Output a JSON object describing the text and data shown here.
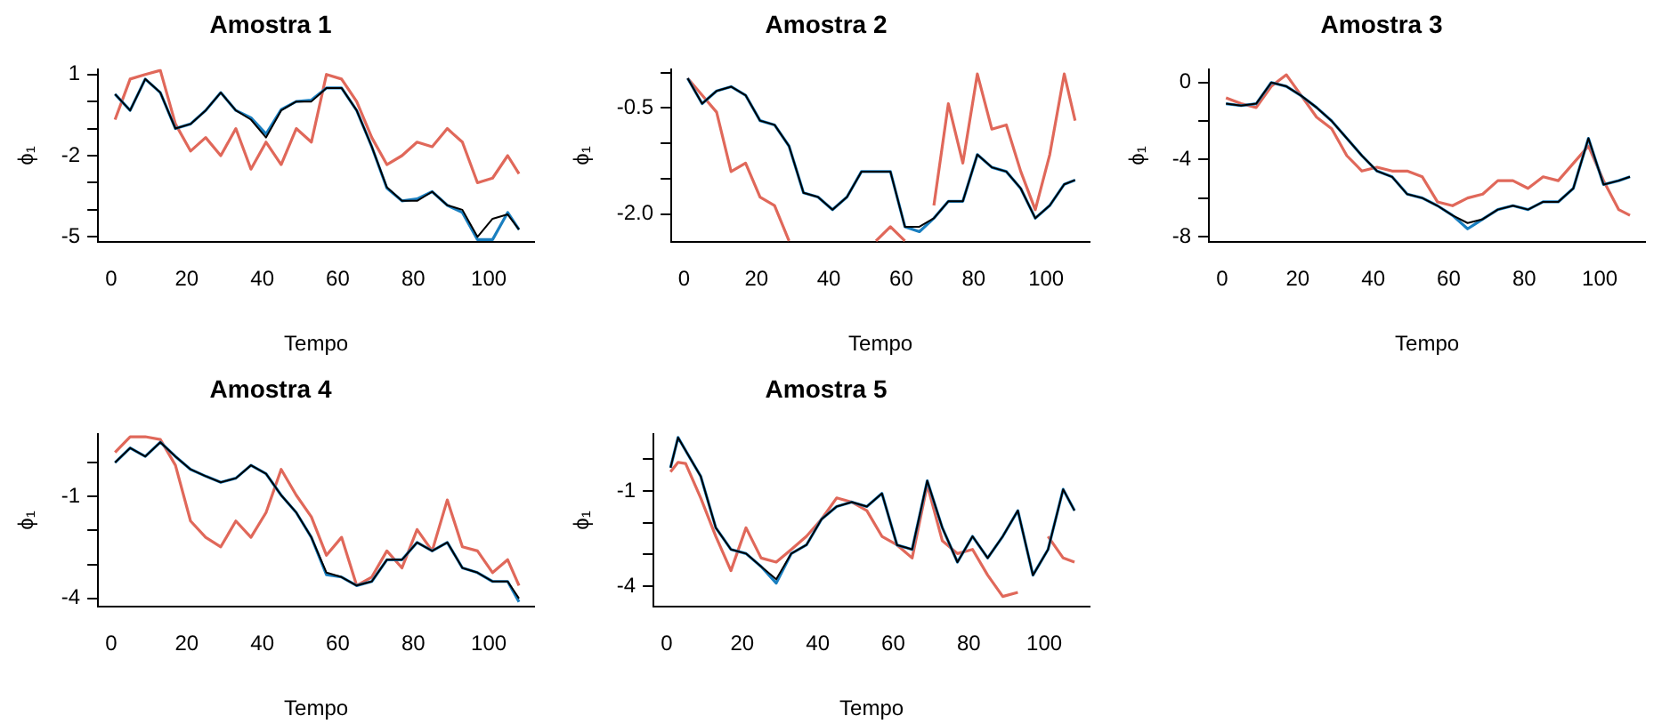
{
  "chart_data": [
    {
      "type": "line",
      "title": "Amostra 1",
      "xlabel": "Tempo",
      "ylabel": "ϕ₁",
      "x": [
        1,
        5,
        9,
        13,
        17,
        21,
        25,
        29,
        33,
        37,
        41,
        45,
        49,
        53,
        57,
        61,
        65,
        69,
        73,
        77,
        81,
        85,
        89,
        93,
        97,
        101,
        105,
        108
      ],
      "xlim": [
        -3.5,
        112
      ],
      "xticks": [
        0,
        20,
        40,
        60,
        80,
        100
      ],
      "ylim": [
        -5.2,
        1.2
      ],
      "yticks": [
        1,
        {
          "value": 0,
          "label": null
        },
        {
          "value": -1,
          "label": null
        },
        -2,
        {
          "value": -3,
          "label": null
        },
        {
          "value": -4,
          "label": null
        },
        -5
      ],
      "series": [
        {
          "color": "#e0685a",
          "values": [
            -0.67,
            0.83,
            1.0,
            1.15,
            -0.83,
            -1.83,
            -1.33,
            -2.0,
            -1.0,
            -2.5,
            -1.5,
            -2.33,
            -1.0,
            -1.5,
            1.0,
            0.83,
            0,
            -1.33,
            -2.33,
            -2.0,
            -1.5,
            -1.67,
            -1.0,
            -1.5,
            -3.0,
            -2.83,
            -2.0,
            -2.67
          ]
        },
        {
          "color": "#1a7fc0",
          "values": [
            0.27,
            -0.33,
            0.83,
            0.33,
            -1.0,
            -0.83,
            -0.33,
            0.33,
            -0.33,
            -0.6,
            -1.2,
            -0.3,
            0,
            0.05,
            0.5,
            0.5,
            -0.33,
            -1.67,
            -3.2,
            -3.67,
            -3.6,
            -3.33,
            -3.83,
            -4.1,
            -5.1,
            -5.1,
            -4.1,
            -4.73
          ]
        },
        {
          "color": "#000000",
          "values": [
            0.27,
            -0.33,
            0.83,
            0.33,
            -1.0,
            -0.83,
            -0.33,
            0.33,
            -0.33,
            -0.67,
            -1.33,
            -0.33,
            0,
            0,
            0.5,
            0.5,
            -0.33,
            -1.67,
            -3.17,
            -3.67,
            -3.67,
            -3.33,
            -3.83,
            -4.0,
            -5.0,
            -4.33,
            -4.17,
            -4.73
          ]
        }
      ]
    },
    {
      "type": "line",
      "title": "Amostra 2",
      "xlabel": "Tempo",
      "ylabel": "ϕ₁",
      "x": [
        1,
        5,
        9,
        13,
        17,
        21,
        25,
        29,
        33,
        37,
        41,
        45,
        49,
        53,
        57,
        61,
        65,
        69,
        73,
        77,
        81,
        85,
        89,
        93,
        97,
        101,
        105,
        108
      ],
      "xlim": [
        -3.5,
        112
      ],
      "xticks": [
        0,
        20,
        40,
        60,
        80,
        100
      ],
      "ylim": [
        -2.4,
        0.05
      ],
      "yticks": [
        {
          "value": 0,
          "label": null
        },
        -0.5,
        {
          "value": -1,
          "label": null
        },
        {
          "value": -1.5,
          "label": null
        },
        {
          "value": -2,
          "label": "-2.0"
        }
      ],
      "series": [
        {
          "color": "#e0685a",
          "values": [
            -0.08,
            -0.32,
            -0.56,
            -1.4,
            -1.28,
            -1.76,
            -1.88,
            -2.38,
            null,
            null,
            null,
            null,
            null,
            -2.38,
            -2.18,
            -2.38,
            null,
            -1.88,
            -0.44,
            -1.28,
            -0.02,
            -0.8,
            -0.74,
            -1.4,
            -1.94,
            -1.16,
            -0.02,
            -0.68
          ]
        },
        {
          "color": "#1a7fc0",
          "values": [
            -0.08,
            -0.44,
            -0.26,
            -0.2,
            -0.32,
            -0.68,
            -0.74,
            -1.04,
            -1.7,
            -1.76,
            -1.94,
            -1.76,
            -1.4,
            -1.4,
            -1.4,
            -2.18,
            -2.25,
            -2.06,
            -1.82,
            -1.82,
            -1.16,
            -1.34,
            -1.4,
            -1.64,
            -2.06,
            -1.88,
            -1.58,
            -1.52
          ]
        },
        {
          "color": "#000000",
          "values": [
            -0.08,
            -0.44,
            -0.26,
            -0.2,
            -0.32,
            -0.68,
            -0.74,
            -1.04,
            -1.7,
            -1.76,
            -1.94,
            -1.76,
            -1.4,
            -1.4,
            -1.4,
            -2.18,
            -2.18,
            -2.06,
            -1.82,
            -1.82,
            -1.16,
            -1.34,
            -1.4,
            -1.64,
            -2.06,
            -1.88,
            -1.58,
            -1.52
          ]
        }
      ]
    },
    {
      "type": "line",
      "title": "Amostra 3",
      "xlabel": "Tempo",
      "ylabel": "ϕ₁",
      "x": [
        1,
        5,
        9,
        13,
        17,
        21,
        25,
        29,
        33,
        37,
        41,
        45,
        49,
        53,
        57,
        61,
        65,
        69,
        73,
        77,
        81,
        85,
        89,
        93,
        97,
        101,
        105,
        108
      ],
      "xlim": [
        -3.5,
        112
      ],
      "xticks": [
        0,
        20,
        40,
        60,
        80,
        100
      ],
      "ylim": [
        -8.3,
        0.7
      ],
      "yticks": [
        0,
        {
          "value": -2,
          "label": null
        },
        -4,
        {
          "value": -6,
          "label": null
        },
        -8
      ],
      "series": [
        {
          "color": "#e0685a",
          "values": [
            -0.8,
            -1.1,
            -1.3,
            -0.2,
            0.4,
            -0.7,
            -1.8,
            -2.4,
            -3.8,
            -4.6,
            -4.4,
            -4.6,
            -4.6,
            -4.9,
            -6.2,
            -6.4,
            -6.0,
            -5.8,
            -5.1,
            -5.1,
            -5.5,
            -4.9,
            -5.1,
            -4.2,
            -3.3,
            -5.1,
            -6.6,
            -6.9
          ]
        },
        {
          "color": "#1a7fc0",
          "values": [
            -1.1,
            -1.2,
            -1.1,
            0,
            -0.2,
            -0.7,
            -1.3,
            -2.0,
            -2.9,
            -3.8,
            -4.6,
            -4.9,
            -5.8,
            -6.0,
            -6.4,
            -6.9,
            -7.6,
            -7.1,
            -6.6,
            -6.4,
            -6.6,
            -6.2,
            -6.2,
            -5.5,
            -2.9,
            -5.3,
            -5.1,
            -4.9
          ]
        },
        {
          "color": "#000000",
          "values": [
            -1.1,
            -1.2,
            -1.1,
            0,
            -0.2,
            -0.7,
            -1.3,
            -2.0,
            -2.9,
            -3.8,
            -4.6,
            -4.9,
            -5.8,
            -6.0,
            -6.4,
            -6.9,
            -7.3,
            -7.1,
            -6.6,
            -6.4,
            -6.6,
            -6.2,
            -6.2,
            -5.5,
            -2.9,
            -5.3,
            -5.1,
            -4.9
          ]
        }
      ]
    },
    {
      "type": "line",
      "title": "Amostra 4",
      "xlabel": "Tempo",
      "ylabel": "ϕ₁",
      "x": [
        1,
        5,
        9,
        13,
        17,
        21,
        25,
        29,
        33,
        37,
        41,
        45,
        49,
        53,
        57,
        61,
        65,
        69,
        73,
        77,
        81,
        85,
        89,
        93,
        97,
        101,
        105,
        108
      ],
      "xlim": [
        -3.5,
        112
      ],
      "xticks": [
        0,
        20,
        40,
        60,
        80,
        100
      ],
      "ylim": [
        -4.25,
        0.85
      ],
      "yticks": [
        {
          "value": 0,
          "label": null
        },
        -1,
        {
          "value": -2,
          "label": null
        },
        {
          "value": -3,
          "label": null
        },
        -4
      ],
      "series": [
        {
          "color": "#e0685a",
          "values": [
            0.3,
            0.76,
            0.76,
            0.68,
            -0.08,
            -1.72,
            -2.2,
            -2.48,
            -1.72,
            -2.2,
            -1.47,
            -0.2,
            -0.96,
            -1.6,
            -2.73,
            -2.2,
            -3.62,
            -3.37,
            -2.6,
            -3.1,
            -1.97,
            -2.6,
            -1.1,
            -2.48,
            -2.6,
            -3.24,
            -2.86,
            -3.62
          ]
        },
        {
          "color": "#1a7fc0",
          "values": [
            0,
            0.43,
            0.18,
            0.6,
            0.18,
            -0.2,
            -0.4,
            -0.58,
            -0.46,
            -0.08,
            -0.33,
            -0.96,
            -1.47,
            -2.2,
            -3.3,
            -3.37,
            -3.62,
            -3.5,
            -2.86,
            -2.86,
            -2.35,
            -2.6,
            -2.35,
            -3.1,
            -3.24,
            -3.5,
            -3.5,
            -4.1
          ]
        },
        {
          "color": "#000000",
          "values": [
            0,
            0.43,
            0.18,
            0.6,
            0.18,
            -0.2,
            -0.4,
            -0.58,
            -0.46,
            -0.08,
            -0.33,
            -0.96,
            -1.47,
            -2.2,
            -3.24,
            -3.37,
            -3.62,
            -3.5,
            -2.86,
            -2.86,
            -2.35,
            -2.6,
            -2.35,
            -3.1,
            -3.24,
            -3.5,
            -3.5,
            -4.0
          ]
        }
      ]
    },
    {
      "type": "line",
      "title": "Amostra 5",
      "xlabel": "Tempo",
      "ylabel": "ϕ₁",
      "x": [
        1,
        3,
        5,
        9,
        13,
        17,
        21,
        25,
        29,
        33,
        37,
        41,
        45,
        49,
        53,
        57,
        61,
        65,
        69,
        73,
        77,
        81,
        85,
        89,
        93,
        97,
        101,
        105,
        108
      ],
      "xlim": [
        -3.5,
        112
      ],
      "xticks": [
        0,
        20,
        40,
        60,
        80,
        100
      ],
      "ylim": [
        -4.65,
        0.8
      ],
      "yticks": [
        {
          "value": 0,
          "label": null
        },
        -1,
        {
          "value": -2,
          "label": null
        },
        {
          "value": -3,
          "label": null
        },
        -4
      ],
      "series": [
        {
          "color": "#e0685a",
          "values": [
            -0.4,
            -0.1,
            -0.14,
            -1.22,
            -2.43,
            -3.51,
            -2.16,
            -3.11,
            -3.24,
            -2.84,
            -2.43,
            -1.89,
            -1.22,
            -1.35,
            -1.62,
            -2.43,
            -2.7,
            -3.11,
            -0.81,
            -2.57,
            -2.97,
            -2.84,
            -3.65,
            -4.32,
            -4.19,
            null,
            -2.43,
            -3.11,
            -3.24
          ]
        },
        {
          "color": "#1a7fc0",
          "values": [
            -0.27,
            0.68,
            0.27,
            -0.54,
            -2.16,
            -2.84,
            -2.97,
            -3.38,
            -3.9,
            -2.97,
            -2.7,
            -1.89,
            -1.49,
            -1.35,
            -1.49,
            -1.08,
            -2.7,
            -2.84,
            -0.68,
            -2.16,
            -3.24,
            -2.43,
            -3.11,
            -2.43,
            -1.62,
            -3.65,
            -2.84,
            -0.95,
            -1.62
          ]
        },
        {
          "color": "#000000",
          "values": [
            -0.27,
            0.68,
            0.27,
            -0.54,
            -2.16,
            -2.84,
            -2.97,
            -3.38,
            -3.78,
            -2.97,
            -2.7,
            -1.89,
            -1.49,
            -1.35,
            -1.49,
            -1.08,
            -2.7,
            -2.84,
            -0.68,
            -2.16,
            -3.24,
            -2.43,
            -3.11,
            -2.43,
            -1.62,
            -3.65,
            -2.84,
            -0.95,
            -1.62
          ]
        }
      ]
    }
  ]
}
